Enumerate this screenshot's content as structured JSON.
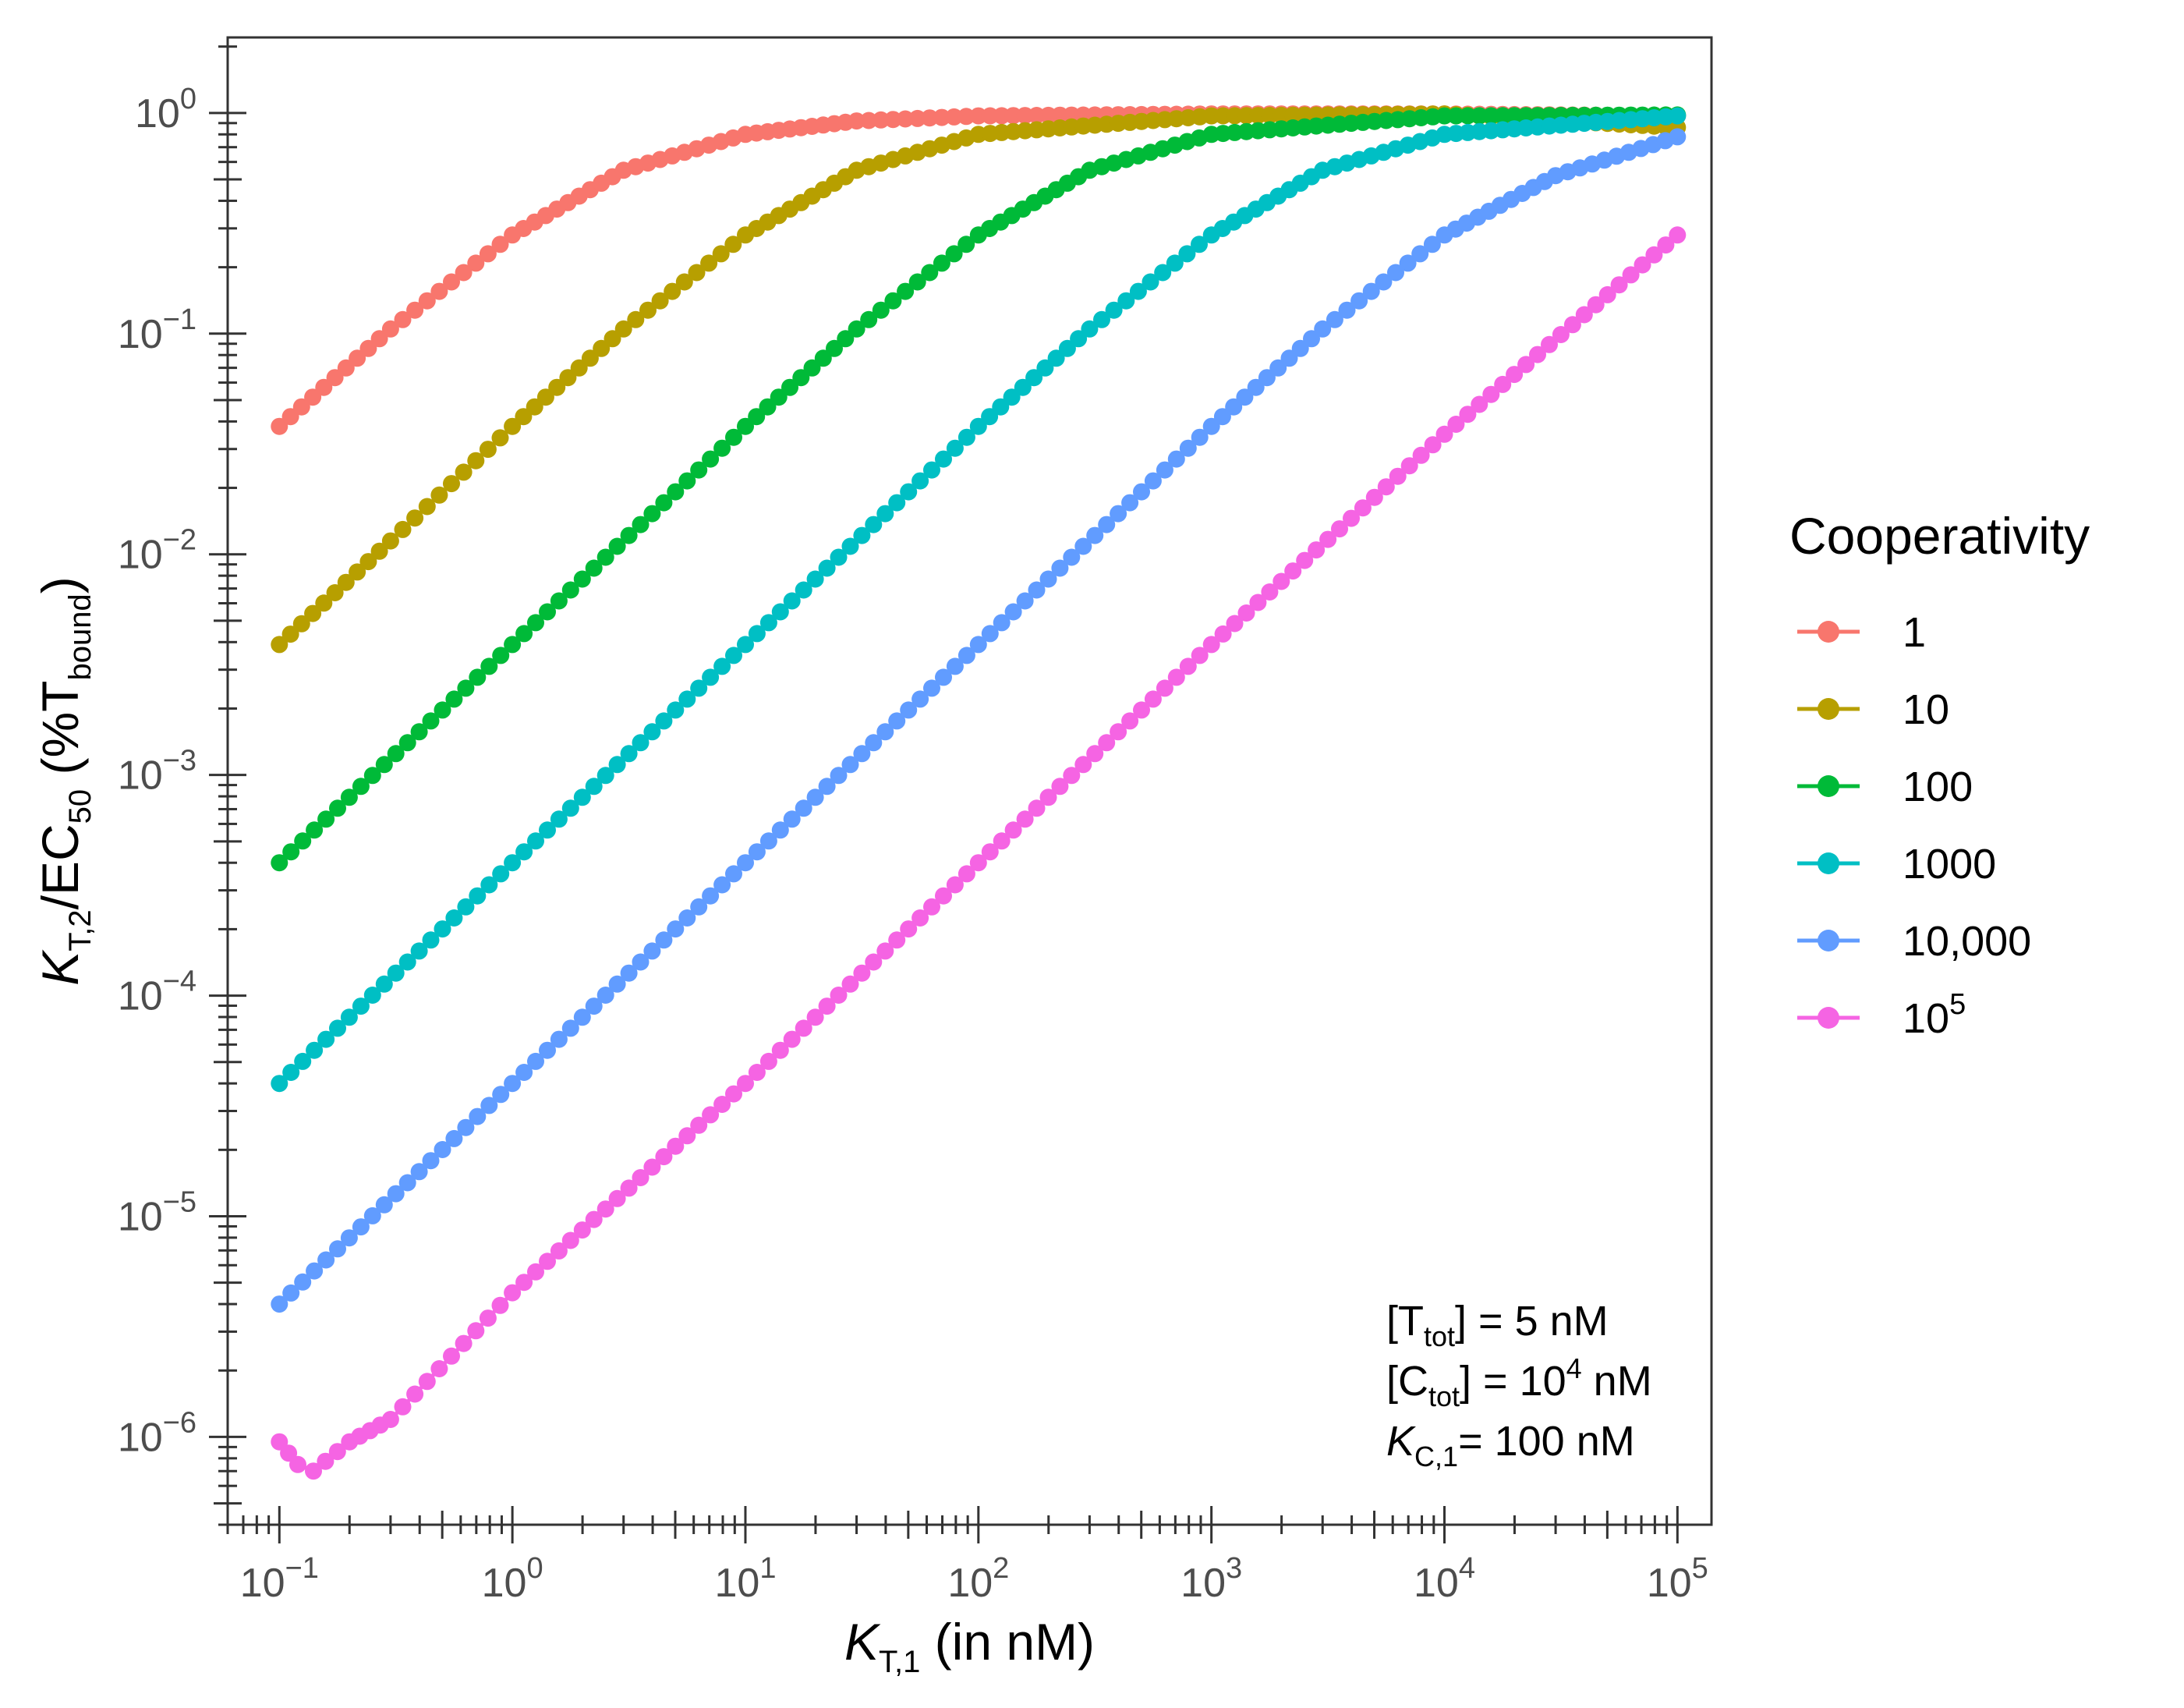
{
  "chart_data": {
    "type": "scatter",
    "x_scale": "log",
    "y_scale": "log",
    "xlim": [
      0.06,
      140000
    ],
    "ylim": [
      4e-07,
      2.2
    ],
    "x_ticks": [
      {
        "value": 0.1,
        "base": "10",
        "exp": "−1"
      },
      {
        "value": 1,
        "base": "10",
        "exp": "0"
      },
      {
        "value": 10,
        "base": "10",
        "exp": "1"
      },
      {
        "value": 100,
        "base": "10",
        "exp": "2"
      },
      {
        "value": 1000,
        "base": "10",
        "exp": "3"
      },
      {
        "value": 10000,
        "base": "10",
        "exp": "4"
      },
      {
        "value": 100000,
        "base": "10",
        "exp": "5"
      }
    ],
    "y_ticks": [
      {
        "value": 1,
        "base": "10",
        "exp": "0"
      },
      {
        "value": 0.1,
        "base": "10",
        "exp": "−1"
      },
      {
        "value": 0.01,
        "base": "10",
        "exp": "−2"
      },
      {
        "value": 0.001,
        "base": "10",
        "exp": "−3"
      },
      {
        "value": 0.0001,
        "base": "10",
        "exp": "−4"
      },
      {
        "value": 1e-05,
        "base": "10",
        "exp": "−5"
      },
      {
        "value": 1e-06,
        "base": "10",
        "exp": "−6"
      }
    ],
    "xlabel": {
      "main": "K",
      "sub": "T,1",
      "rest": " (in nM)"
    },
    "ylabel": {
      "main": "K",
      "sub1": "T,2",
      "mid": "/EC",
      "sub2": "50",
      "rest1": " (%T",
      "sub3": "bound",
      "rest2": ")"
    },
    "legend": {
      "title": "Cooperativity",
      "position": "right",
      "entries": [
        {
          "label": "1",
          "sup": "",
          "color": "#F8766D"
        },
        {
          "label": "10",
          "sup": "",
          "color": "#B79F00"
        },
        {
          "label": "100",
          "sup": "",
          "color": "#00BA38"
        },
        {
          "label": "1000",
          "sup": "",
          "color": "#00BFC4"
        },
        {
          "label": "10,000",
          "sup": "",
          "color": "#619CFF"
        },
        {
          "label": "10",
          "sup": "5",
          "color": "#F564E3"
        }
      ]
    },
    "series": [
      {
        "name": "1",
        "color": "#F8766D",
        "x": [
          0.1,
          0.3,
          1,
          3,
          10,
          30,
          100,
          1000,
          10000,
          100000
        ],
        "y": [
          0.038,
          0.105,
          0.28,
          0.55,
          0.8,
          0.92,
          0.97,
          0.99,
          0.99,
          0.97
        ]
      },
      {
        "name": "10",
        "color": "#B79F00",
        "x": [
          0.1,
          0.3,
          1,
          3,
          10,
          30,
          100,
          1000,
          10000,
          100000
        ],
        "y": [
          0.0039,
          0.0115,
          0.038,
          0.105,
          0.28,
          0.55,
          0.8,
          0.97,
          0.99,
          0.86
        ]
      },
      {
        "name": "100",
        "color": "#00BA38",
        "x": [
          0.1,
          1,
          10,
          30,
          100,
          300,
          1000,
          10000,
          100000
        ],
        "y": [
          0.0004,
          0.0039,
          0.038,
          0.105,
          0.28,
          0.55,
          0.8,
          0.97,
          0.98
        ]
      },
      {
        "name": "1000",
        "color": "#00BFC4",
        "x": [
          0.1,
          1,
          10,
          100,
          300,
          1000,
          3000,
          10000,
          100000
        ],
        "y": [
          4e-05,
          0.0004,
          0.0039,
          0.038,
          0.105,
          0.28,
          0.55,
          0.8,
          0.97
        ]
      },
      {
        "name": "10,000",
        "color": "#619CFF",
        "x": [
          0.1,
          1,
          10,
          100,
          1000,
          3000,
          10000,
          30000,
          100000
        ],
        "y": [
          4e-06,
          4e-05,
          0.0004,
          0.0039,
          0.038,
          0.105,
          0.28,
          0.52,
          0.78
        ]
      },
      {
        "name": "10^5",
        "color": "#F564E3",
        "x": [
          0.1,
          0.12,
          0.14,
          0.2,
          0.3,
          1,
          10,
          100,
          1000,
          10000,
          100000
        ],
        "y": [
          9.5e-07,
          7.5e-07,
          7e-07,
          9.5e-07,
          1.2e-06,
          4.5e-06,
          4e-05,
          0.0004,
          0.0039,
          0.035,
          0.28
        ]
      }
    ],
    "annotations": [
      {
        "pre": "[T",
        "sub": "tot",
        "post": "] = 5 nM",
        "sup": "",
        "tail": ""
      },
      {
        "pre": "[C",
        "sub": "tot",
        "post": "] = 10",
        "sup": "4",
        "tail": " nM"
      },
      {
        "pre": "K",
        "sub": "C,1",
        "post": "= 100 nM",
        "sup": "",
        "tail": "",
        "italic_pre": true
      }
    ]
  }
}
